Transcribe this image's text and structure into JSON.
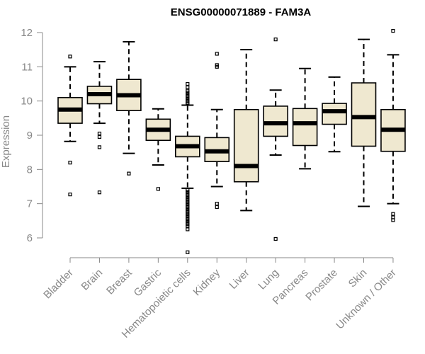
{
  "chart_data": {
    "type": "boxplot",
    "title": "ENSG00000071889 - FAM3A",
    "ylabel": "Expression",
    "ylim": [
      5.5,
      12.1
    ],
    "yticks": [
      "6",
      "7",
      "8",
      "9",
      "10",
      "11",
      "12"
    ],
    "box_fill": "#efe8d0",
    "stroke": "#000000",
    "categories": [
      "Bladder",
      "Brain",
      "Breast",
      "Gastric",
      "Hematopoietic cells",
      "Kidney",
      "Liver",
      "Lung",
      "Pancreas",
      "Prostate",
      "Skin",
      "Unknown / Other"
    ],
    "boxes": [
      {
        "category": "Bladder",
        "whisker_low": 8.82,
        "q1": 9.35,
        "median": 9.75,
        "q3": 10.1,
        "whisker_high": 11.0,
        "outliers": [
          11.3,
          8.2,
          7.27
        ]
      },
      {
        "category": "Brain",
        "whisker_low": 9.35,
        "q1": 9.92,
        "median": 10.2,
        "q3": 10.43,
        "whisker_high": 11.15,
        "outliers": [
          9.05,
          8.95,
          8.65,
          7.33
        ]
      },
      {
        "category": "Breast",
        "whisker_low": 8.47,
        "q1": 9.72,
        "median": 10.17,
        "q3": 10.63,
        "whisker_high": 11.73,
        "outliers": [
          7.88
        ]
      },
      {
        "category": "Gastric",
        "whisker_low": 8.13,
        "q1": 8.85,
        "median": 9.16,
        "q3": 9.47,
        "whisker_high": 9.77,
        "outliers": [
          7.43
        ]
      },
      {
        "category": "Hematopoietic cells",
        "whisker_low": 7.45,
        "q1": 8.37,
        "median": 8.68,
        "q3": 8.97,
        "whisker_high": 9.88,
        "outliers": [
          10.5,
          10.4,
          10.3,
          10.25,
          10.2,
          10.15,
          10.1,
          10.05,
          10.0,
          9.95,
          9.92,
          7.4,
          7.35,
          7.3,
          7.25,
          7.2,
          7.15,
          7.1,
          7.05,
          7.0,
          6.95,
          6.9,
          6.85,
          6.8,
          6.75,
          6.7,
          6.65,
          6.6,
          6.55,
          6.5,
          6.45,
          6.4,
          6.35,
          6.25,
          5.58
        ]
      },
      {
        "category": "Kidney",
        "whisker_low": 7.5,
        "q1": 8.23,
        "median": 8.53,
        "q3": 8.93,
        "whisker_high": 9.75,
        "outliers": [
          11.38,
          11.05,
          11.0,
          7.0,
          6.9
        ]
      },
      {
        "category": "Liver",
        "whisker_low": 6.8,
        "q1": 7.64,
        "median": 8.1,
        "q3": 9.75,
        "whisker_high": 11.5,
        "outliers": []
      },
      {
        "category": "Lung",
        "whisker_low": 8.42,
        "q1": 8.97,
        "median": 9.35,
        "q3": 9.85,
        "whisker_high": 10.32,
        "outliers": [
          11.8,
          5.97
        ]
      },
      {
        "category": "Pancreas",
        "whisker_low": 8.02,
        "q1": 8.7,
        "median": 9.35,
        "q3": 9.78,
        "whisker_high": 10.95,
        "outliers": []
      },
      {
        "category": "Prostate",
        "whisker_low": 8.52,
        "q1": 9.32,
        "median": 9.7,
        "q3": 9.93,
        "whisker_high": 10.7,
        "outliers": []
      },
      {
        "category": "Skin",
        "whisker_low": 6.92,
        "q1": 8.68,
        "median": 9.53,
        "q3": 10.53,
        "whisker_high": 11.8,
        "outliers": []
      },
      {
        "category": "Unknown / Other",
        "whisker_low": 7.0,
        "q1": 8.53,
        "median": 9.16,
        "q3": 9.75,
        "whisker_high": 11.35,
        "outliers": [
          12.05,
          6.7,
          6.6,
          6.52
        ]
      }
    ]
  }
}
